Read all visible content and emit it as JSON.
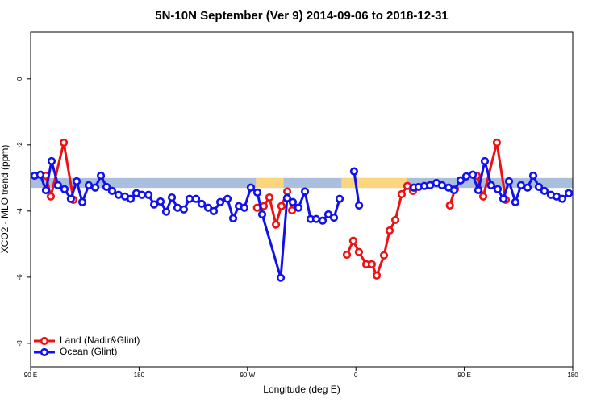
{
  "chart_data": {
    "type": "line",
    "title": "5N-10N September (Ver 9)   2014-09-06 to 2018-12-31",
    "x_label": "Longitude (deg E)",
    "y_label": "XCO2 - MLO trend (ppm)",
    "xlim": [
      90,
      540
    ],
    "ylim": [
      -8.71,
      1.41
    ],
    "xticks": [
      {
        "value": 90,
        "label": "90 E"
      },
      180,
      {
        "value": 270,
        "label": "90 W"
      },
      {
        "value": 360,
        "label": "0"
      },
      {
        "value": 450,
        "label": "90 E"
      },
      180
    ],
    "yticks": [
      0,
      -2,
      -4,
      -6,
      -8
    ],
    "bands": [
      {
        "ylim": [
          -3.3,
          -3.0
        ],
        "color": "#a9bfdd"
      }
    ],
    "highlights": [
      {
        "xlim": [
          277,
          300
        ],
        "ylim": [
          -3.3,
          -3.0
        ],
        "color": "#fcd67f"
      },
      {
        "xlim": [
          348,
          402
        ],
        "ylim": [
          -3.3,
          -3.0
        ],
        "color": "#fcd67f"
      }
    ],
    "legend": "bottom-left",
    "series": [
      {
        "name": "Land (Nadir&Glint)",
        "color": "#ee1111",
        "x": [
          102.7,
          106.7,
          117.5,
          125.5,
          null,
          278,
          283.5,
          288.2,
          293.6,
          298.2,
          303,
          307,
          null,
          352.5,
          357.8,
          362.5,
          368.6,
          373.2,
          377.3,
          383.3,
          388,
          392.7,
          398,
          402.7,
          407.4,
          null,
          438,
          442.2,
          null,
          460.3,
          465.7,
          477,
          484.4
        ],
        "values": [
          -2.93,
          -3.56,
          -1.93,
          -3.66,
          null,
          -3.9,
          -3.85,
          -3.59,
          -4.41,
          -3.85,
          -3.41,
          -3.98,
          null,
          -5.32,
          -4.9,
          -5.24,
          -5.61,
          -5.61,
          -5.95,
          -5.34,
          -4.59,
          -4.27,
          -3.49,
          -3.24,
          -3.39,
          null,
          -3.83,
          -3.34,
          null,
          -2.93,
          -3.56,
          -1.93,
          -3.66
        ]
      },
      {
        "name": "Ocean (Glint)",
        "color": "#1111ee",
        "x": [
          93.3,
          98,
          102.7,
          107.4,
          112.7,
          118.1,
          123.4,
          128.2,
          132.9,
          138.2,
          143.6,
          148.3,
          153,
          157.6,
          163,
          168.3,
          173,
          177.7,
          182.4,
          187.8,
          192.5,
          197.8,
          202.5,
          207.2,
          211.9,
          217.2,
          221.9,
          227.3,
          232,
          237.3,
          242,
          247.4,
          253.4,
          258.1,
          262.8,
          267.4,
          272.8,
          278.2,
          282.2,
          297.6,
          302.9,
          307.6,
          312.3,
          317.7,
          322.4,
          327,
          332.4,
          337.1,
          341.8,
          346.5,
          null,
          358.5,
          362.6,
          null,
          408.1,
          412.1,
          416.8,
          421.5,
          426.8,
          431.5,
          436.9,
          441.5,
          446.9,
          451.6,
          457,
          461.6,
          467,
          472.3,
          477.7,
          482.4,
          487.1,
          492.4,
          497.1,
          502.5,
          507.2,
          511.9,
          516.5,
          521.9,
          526.6,
          531.3,
          536.7
        ],
        "values": [
          -2.93,
          -2.9,
          -3.37,
          -2.49,
          -3.22,
          -3.34,
          -3.63,
          -3.1,
          -3.73,
          -3.22,
          -3.29,
          -2.93,
          -3.27,
          -3.39,
          -3.51,
          -3.56,
          -3.63,
          -3.46,
          -3.51,
          -3.51,
          -3.8,
          -3.71,
          -4.02,
          -3.59,
          -3.9,
          -3.95,
          -3.63,
          -3.63,
          -3.78,
          -3.9,
          -4.0,
          -3.73,
          -3.63,
          -4.22,
          -3.85,
          -3.9,
          -3.29,
          -3.44,
          -4.1,
          -6.02,
          -3.61,
          -3.73,
          -3.9,
          -3.41,
          -4.24,
          -4.24,
          -4.29,
          -4.1,
          -4.2,
          -3.63,
          null,
          -2.8,
          -3.83,
          null,
          -3.29,
          -3.27,
          -3.24,
          -3.22,
          -3.15,
          -3.22,
          -3.29,
          -3.37,
          -3.07,
          -2.95,
          -2.9,
          -3.37,
          -2.49,
          -3.22,
          -3.34,
          -3.63,
          -3.1,
          -3.73,
          -3.22,
          -3.29,
          -2.93,
          -3.27,
          -3.39,
          -3.51,
          -3.56,
          -3.63,
          -3.46
        ]
      }
    ]
  }
}
